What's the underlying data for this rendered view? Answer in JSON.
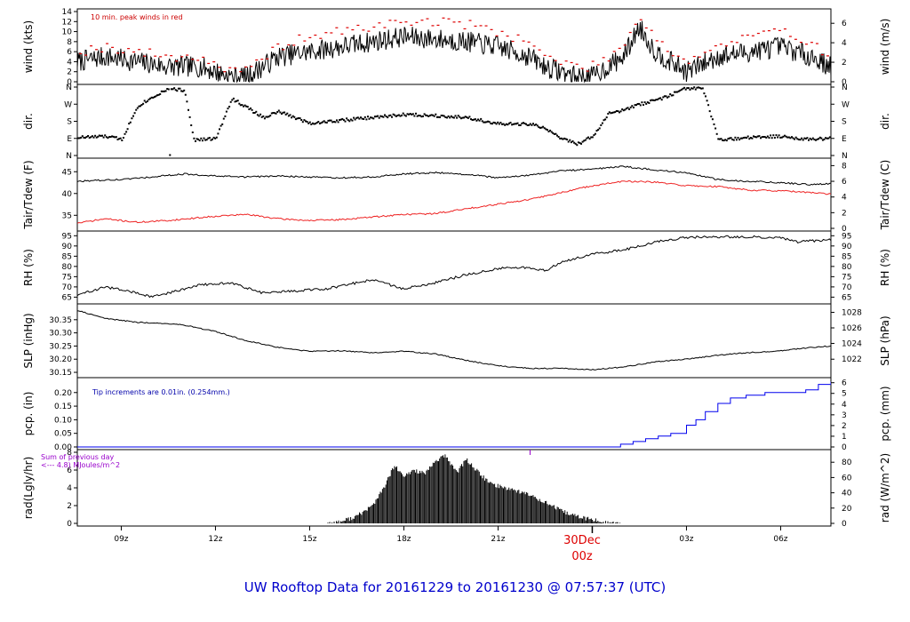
{
  "title": "UW Rooftop Data for 20161229  to  20161230 @ 07:57:37  (UTC)",
  "colors": {
    "series": "#000000",
    "peak": "#dd0000",
    "dew": "#ee2222",
    "precip": "#0000ee",
    "note_red": "#cc0000",
    "note_blue": "#0000aa",
    "note_purple": "#9900cc",
    "title": "#0000cc"
  },
  "chart_data": {
    "type": "line",
    "x_axis": {
      "range_hours_utc": [
        7.6,
        31.6
      ],
      "ticks": [
        {
          "hour": 9,
          "label": "09z"
        },
        {
          "hour": 12,
          "label": "12z"
        },
        {
          "hour": 15,
          "label": "15z"
        },
        {
          "hour": 18,
          "label": "18z"
        },
        {
          "hour": 21,
          "label": "21z"
        },
        {
          "hour": 24,
          "label": ""
        },
        {
          "hour": 27,
          "label": "03z"
        },
        {
          "hour": 30,
          "label": "06z"
        }
      ],
      "day_marker": {
        "hour": 24,
        "date_label": "30Dec",
        "hour_label": "00z"
      }
    },
    "panels": [
      {
        "key": "wind",
        "ylabel_left": "wind (kts)",
        "ylabel_right": "wind (m/s)",
        "ylim": [
          0,
          14
        ],
        "ticks_left": [
          0,
          2,
          4,
          6,
          8,
          10,
          12,
          14
        ],
        "ticks_right": [
          {
            "v": 0,
            "label": "0"
          },
          {
            "v": 3.89,
            "label": "2"
          },
          {
            "v": 7.78,
            "label": "4"
          },
          {
            "v": 11.66,
            "label": "6"
          }
        ],
        "note": "10 min. peak winds in red",
        "series": [
          {
            "hour": [
              7.6,
              8.5,
              9.5,
              10.5,
              11.5,
              12.5,
              13.0,
              14.0,
              15.0,
              16.0,
              17.0,
              18.0,
              19.0,
              20.0,
              21.0,
              22.0,
              22.5,
              23.5,
              24.0,
              25.0,
              25.5,
              26.0,
              26.5,
              27.0,
              28.0,
              29.0,
              30.0,
              31.0,
              31.6
            ],
            "value": [
              4,
              5,
              4,
              3,
              3,
              1,
              1,
              5,
              6,
              7,
              8,
              9,
              8.5,
              8,
              7,
              5,
              3,
              1,
              1,
              5,
              11,
              6,
              4,
              2,
              5,
              6,
              7,
              5,
              3
            ]
          },
          {
            "hour": [
              7.6,
              8.5,
              9.5,
              10.5,
              11.5,
              12.5,
              13.0,
              14.0,
              15.0,
              16.0,
              17.0,
              18.0,
              19.0,
              20.0,
              21.0,
              22.0,
              22.5,
              23.5,
              24.0,
              25.0,
              25.5,
              26.0,
              26.5,
              27.0,
              28.0,
              29.0,
              30.0,
              31.0,
              31.6
            ],
            "value": [
              6,
              7,
              6,
              5,
              5,
              2,
              2,
              7,
              9,
              10,
              11,
              12,
              12,
              11.5,
              10,
              8,
              5,
              3,
              3,
              7,
              13.5,
              9,
              6,
              4,
              7,
              9,
              10,
              8,
              5
            ]
          }
        ]
      },
      {
        "key": "dir",
        "ylabel_left": "dir.",
        "ylabel_right": "dir.",
        "ylim": [
          0,
          360
        ],
        "ticks_left": [
          {
            "v": 0,
            "label": "N"
          },
          {
            "v": 90,
            "label": "E"
          },
          {
            "v": 180,
            "label": "S"
          },
          {
            "v": 270,
            "label": "W"
          },
          {
            "v": 360,
            "label": "N"
          }
        ],
        "series": [
          {
            "hour": [
              7.6,
              8.5,
              9.0,
              9.5,
              10.0,
              10.5,
              11.0,
              11.3,
              12.0,
              12.5,
              13.0,
              13.5,
              14.0,
              15.0,
              16.0,
              17.0,
              18.0,
              19.0,
              20.0,
              21.0,
              22.0,
              22.5,
              23.0,
              23.5,
              24.0,
              24.5,
              25.0,
              25.5,
              26.0,
              26.5,
              27.0,
              27.5,
              28.0,
              29.0,
              30.0,
              31.0,
              31.6
            ],
            "value": [
              95,
              100,
              85,
              260,
              310,
              355,
              340,
              80,
              90,
              300,
              250,
              200,
              230,
              170,
              185,
              200,
              215,
              210,
              200,
              165,
              165,
              140,
              90,
              60,
              100,
              220,
              240,
              270,
              290,
              320,
              355,
              350,
              80,
              95,
              100,
              85,
              90
            ]
          }
        ]
      },
      {
        "key": "temp",
        "ylabel_left": "Tair/Tdew (F)",
        "ylabel_right": "Tair/Tdew (C)",
        "ylim": [
          32,
          47.5
        ],
        "ticks_left": [
          35,
          40,
          45
        ],
        "ticks_right": [
          {
            "v": 32,
            "label": "0"
          },
          {
            "v": 35.6,
            "label": "2"
          },
          {
            "v": 39.2,
            "label": "4"
          },
          {
            "v": 42.8,
            "label": "6"
          },
          {
            "v": 46.4,
            "label": "8"
          }
        ],
        "series": [
          {
            "hour": [
              7.6,
              9.0,
              10.0,
              11.0,
              12.0,
              13.0,
              14.0,
              15.0,
              16.0,
              17.0,
              18.0,
              19.0,
              20.0,
              21.0,
              22.0,
              23.0,
              24.0,
              25.0,
              26.0,
              27.0,
              28.0,
              29.0,
              30.0,
              31.0,
              31.6
            ],
            "value": [
              42.8,
              43.2,
              43.8,
              44.5,
              44.0,
              43.8,
              44.0,
              43.8,
              43.6,
              43.8,
              44.5,
              44.8,
              44.4,
              43.6,
              44.2,
              45.2,
              45.6,
              46.2,
              45.4,
              44.8,
              43.2,
              42.8,
              42.5,
              42.0,
              42.3
            ]
          },
          {
            "hour": [
              7.6,
              8.5,
              9.5,
              10.5,
              12.0,
              13.0,
              14.0,
              15.0,
              16.0,
              17.0,
              18.0,
              19.0,
              20.0,
              21.0,
              22.0,
              23.0,
              24.0,
              25.0,
              26.0,
              27.0,
              28.0,
              29.0,
              30.0,
              31.0,
              31.6
            ],
            "value": [
              33.2,
              34.2,
              33.4,
              33.8,
              34.8,
              35.2,
              34.2,
              33.8,
              34.0,
              34.6,
              35.2,
              35.4,
              36.5,
              37.6,
              38.6,
              40.2,
              41.8,
              42.8,
              42.6,
              41.8,
              41.6,
              40.8,
              40.6,
              40.2,
              39.8
            ]
          }
        ]
      },
      {
        "key": "rh",
        "ylabel_left": "RH (%)",
        "ylabel_right": "RH (%)",
        "ylim": [
          63,
          96
        ],
        "ticks_left": [
          65,
          70,
          75,
          80,
          85,
          90,
          95
        ],
        "series": [
          {
            "hour": [
              7.6,
              8.5,
              9.5,
              10.0,
              10.5,
              11.5,
              12.5,
              13.5,
              14.5,
              15.5,
              16.5,
              17.0,
              18.0,
              19.0,
              20.0,
              21.0,
              22.0,
              22.5,
              23.0,
              24.0,
              25.0,
              26.0,
              27.0,
              28.0,
              29.0,
              30.0,
              30.5,
              31.6
            ],
            "value": [
              66,
              70,
              67,
              65,
              67,
              71,
              72,
              67,
              68,
              69,
              72,
              73.5,
              69,
              72,
              76,
              79,
              79.5,
              78,
              82,
              86,
              88,
              92,
              94.2,
              94.5,
              94.5,
              94,
              92,
              93
            ]
          }
        ]
      },
      {
        "key": "slp",
        "ylabel_left": "SLP (inHg)",
        "ylabel_right": "SLP (hPa)",
        "ylim": [
          30.14,
          30.4
        ],
        "ticks_left": [
          30.15,
          30.2,
          30.25,
          30.3,
          30.35
        ],
        "ticks_right": [
          {
            "v": 30.2,
            "label": "1022"
          },
          {
            "v": 30.26,
            "label": "1024"
          },
          {
            "v": 30.319,
            "label": "1026"
          },
          {
            "v": 30.378,
            "label": "1028"
          }
        ],
        "series": [
          {
            "hour": [
              7.6,
              8.5,
              9.5,
              10.5,
              11.0,
              12.0,
              13.0,
              14.0,
              15.0,
              16.0,
              17.0,
              18.0,
              19.0,
              20.0,
              21.0,
              22.0,
              23.0,
              24.0,
              25.0,
              26.0,
              27.0,
              28.0,
              29.0,
              30.0,
              31.0,
              31.6
            ],
            "value": [
              30.385,
              30.355,
              30.34,
              30.335,
              30.33,
              30.305,
              30.27,
              30.245,
              30.23,
              30.232,
              30.225,
              30.23,
              30.22,
              30.195,
              30.175,
              30.165,
              30.165,
              30.16,
              30.17,
              30.19,
              30.2,
              30.215,
              30.225,
              30.232,
              30.245,
              30.25
            ]
          }
        ]
      },
      {
        "key": "pcp",
        "ylabel_left": "pcp. (in)",
        "ylabel_right": "pcp. (mm)",
        "ylim": [
          0,
          0.245
        ],
        "ticks_left": [
          0.0,
          0.05,
          0.1,
          0.15,
          0.2
        ],
        "ticks_right": [
          {
            "v": 0,
            "label": "0"
          },
          {
            "v": 0.0394,
            "label": "1"
          },
          {
            "v": 0.0787,
            "label": "2"
          },
          {
            "v": 0.1181,
            "label": "3"
          },
          {
            "v": 0.1575,
            "label": "4"
          },
          {
            "v": 0.1969,
            "label": "5"
          },
          {
            "v": 0.2362,
            "label": "6"
          }
        ],
        "note": "Tip increments are 0.01in. (0.254mm.)",
        "series": [
          {
            "hour": [
              7.6,
              24.9,
              24.9,
              25.3,
              25.7,
              26.1,
              26.5,
              27.0,
              27.3,
              27.6,
              28.0,
              28.4,
              28.9,
              29.5,
              30.1,
              30.8,
              31.2,
              31.6
            ],
            "value": [
              0,
              0,
              0.01,
              0.02,
              0.03,
              0.04,
              0.05,
              0.08,
              0.1,
              0.13,
              0.16,
              0.18,
              0.19,
              0.2,
              0.2,
              0.21,
              0.23,
              0.24
            ]
          }
        ]
      },
      {
        "key": "rad",
        "ylabel_left": "rad(Lgly/hr)",
        "ylabel_right": "rad (W/m^2)",
        "ylim": [
          0,
          8
        ],
        "ticks_left": [
          0,
          2,
          4,
          6,
          8
        ],
        "ticks_right": [
          {
            "v": 0,
            "label": "0"
          },
          {
            "v": 1.72,
            "label": "20"
          },
          {
            "v": 3.44,
            "label": "40"
          },
          {
            "v": 5.16,
            "label": "60"
          },
          {
            "v": 6.88,
            "label": "80"
          }
        ],
        "note_lines": [
          "Sum of previous day",
          "<--- 4.8) MJoules/m^2"
        ],
        "series": [
          {
            "hour": [
              15.5,
              16.0,
              16.5,
              17.0,
              17.3,
              17.5,
              17.7,
              18.0,
              18.3,
              18.7,
              19.0,
              19.3,
              19.7,
              20.0,
              20.3,
              20.7,
              21.0,
              21.5,
              22.0,
              22.5,
              23.0,
              23.5,
              24.0,
              24.5,
              24.9
            ],
            "value": [
              0,
              0.2,
              0.8,
              2.0,
              3.6,
              5.0,
              6.5,
              5.2,
              6.0,
              5.6,
              7.0,
              7.6,
              5.8,
              7.2,
              6.0,
              4.6,
              4.2,
              3.8,
              3.2,
              2.4,
              1.4,
              0.8,
              0.4,
              0.1,
              0
            ]
          }
        ]
      }
    ]
  }
}
